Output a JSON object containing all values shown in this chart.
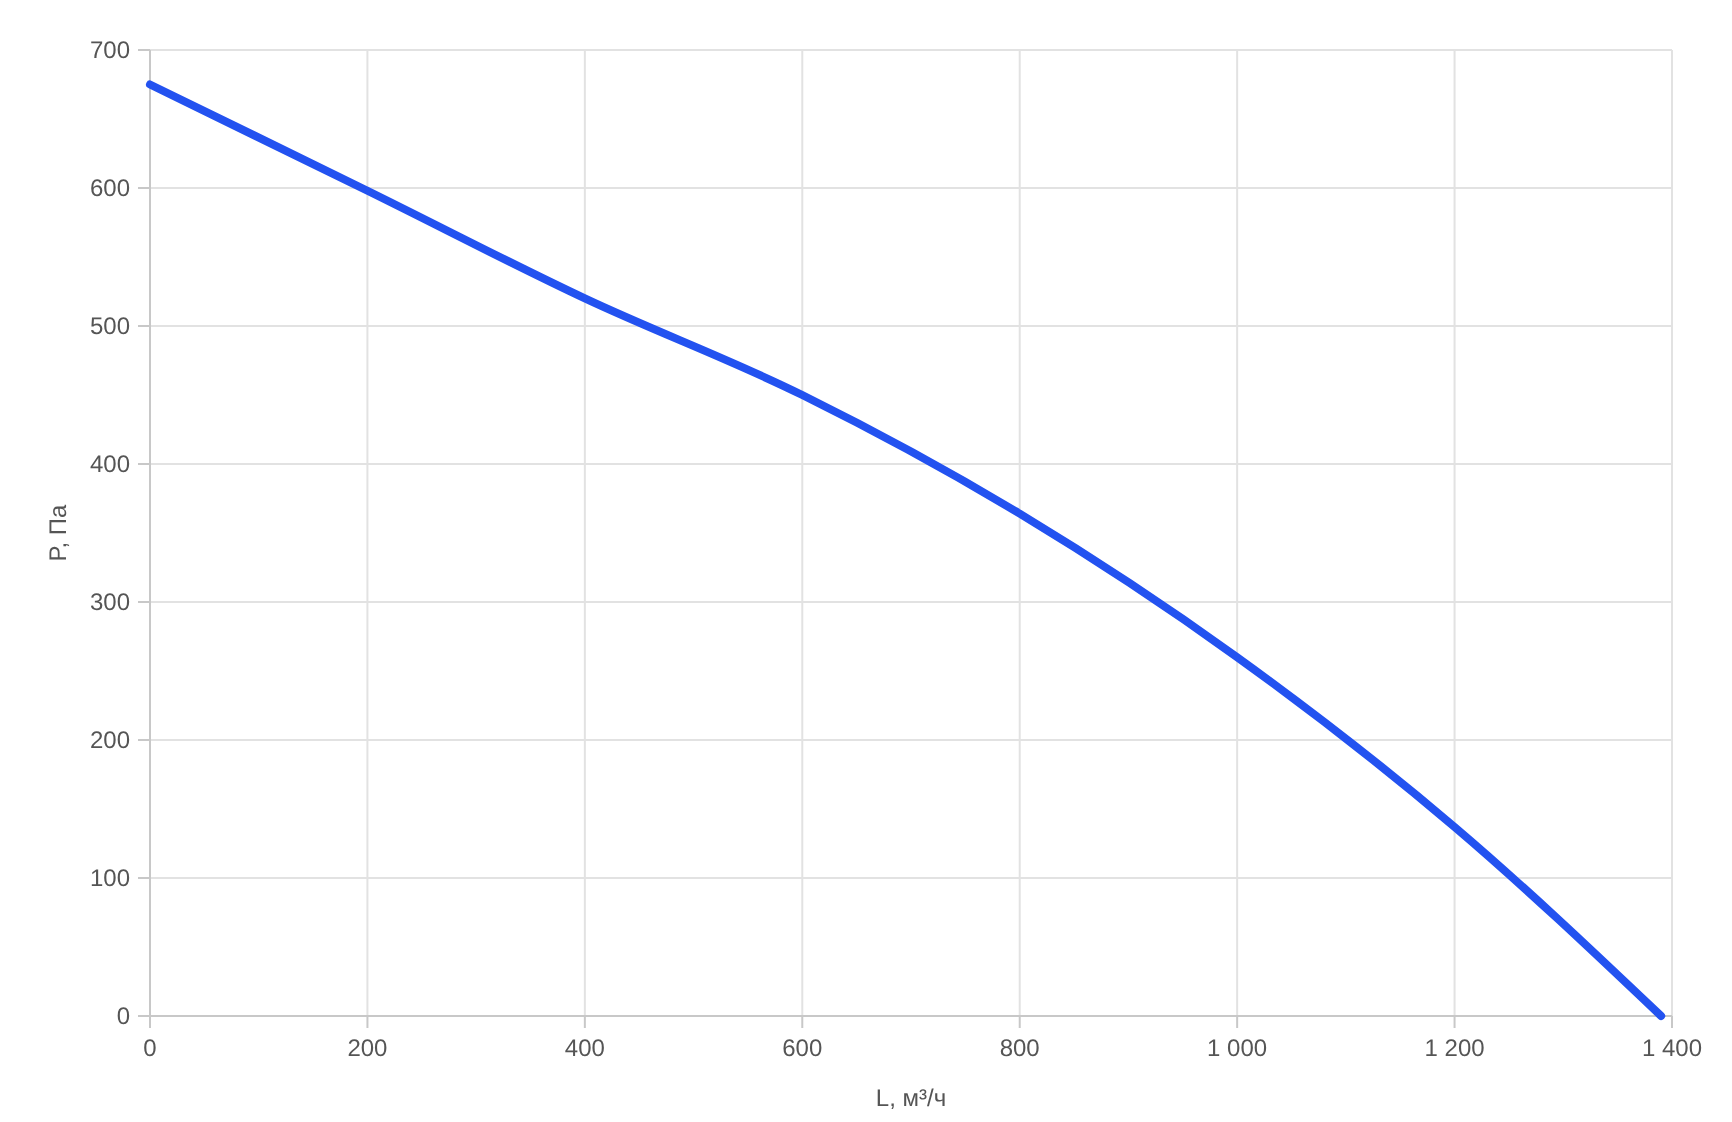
{
  "chart_data": {
    "type": "line",
    "xlabel": "L, м³/ч",
    "ylabel": "P, Па",
    "x": [
      0,
      200,
      400,
      600,
      800,
      1000,
      1200,
      1390
    ],
    "series": [
      {
        "color": "#2352f0",
        "values": [
          675,
          598,
          520,
          450,
          364,
          260,
          137,
          0
        ]
      }
    ],
    "xlim": [
      0,
      1400
    ],
    "xticks": [
      0,
      200,
      400,
      600,
      800,
      {
        "value": 1000,
        "label": "1 000"
      },
      {
        "value": 1200,
        "label": "1 200"
      },
      {
        "value": 1400,
        "label": "1 400"
      }
    ],
    "ylim": [
      0,
      700
    ],
    "yticks": [
      0,
      100,
      200,
      300,
      400,
      500,
      600,
      700
    ],
    "grid": true,
    "marker": "none",
    "line_style": "solid"
  }
}
